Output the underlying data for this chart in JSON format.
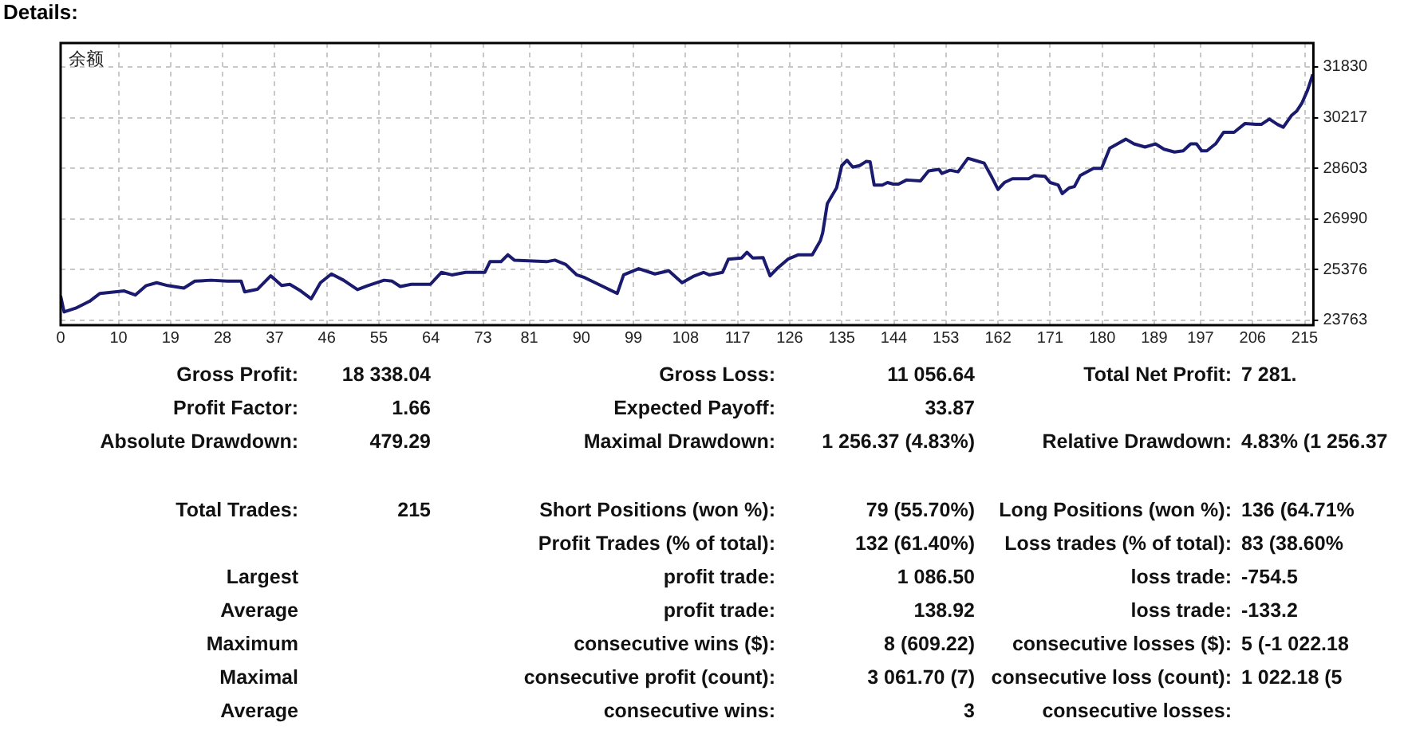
{
  "chart_data": [
    {
      "type": "line",
      "title": "Details:",
      "annotations": [
        "余额"
      ],
      "color": "#1a1a6e",
      "grid": true,
      "xlim": [
        0,
        216.5
      ],
      "ylim": [
        23610,
        32590
      ],
      "xticks": [
        0,
        10,
        19,
        28,
        37,
        46,
        55,
        64,
        73,
        81,
        90,
        99,
        108,
        117,
        126,
        135,
        144,
        153,
        162,
        171,
        180,
        189,
        197,
        206,
        215
      ],
      "yticks": [
        23763,
        25376,
        26990,
        28603,
        30217,
        31830
      ],
      "x": [
        0,
        0.6,
        2.6,
        5.0,
        6.8,
        11.0,
        12.9,
        14.8,
        16.6,
        18.5,
        21.3,
        23.2,
        26.0,
        28.8,
        31.2,
        31.8,
        34.0,
        36.3,
        38.2,
        39.6,
        41.5,
        43.3,
        44.9,
        46.8,
        48.9,
        51.3,
        53.1,
        55.9,
        57.3,
        58.7,
        60.6,
        63.9,
        65.8,
        67.6,
        70.0,
        73.3,
        74.2,
        76.1,
        77.3,
        78.4,
        84.0,
        85.4,
        87.3,
        89.2,
        90.6,
        94.3,
        96.2,
        97.3,
        99.9,
        102.7,
        105.1,
        107.4,
        109.3,
        111.1,
        112.1,
        114.4,
        115.4,
        117.7,
        118.6,
        119.6,
        121.4,
        122.6,
        123.8,
        125.7,
        127.5,
        129.9,
        131.3,
        131.7,
        132.5,
        134.1,
        135.0,
        135.9,
        136.9,
        138.1,
        139.2,
        139.9,
        140.6,
        142.0,
        142.9,
        143.9,
        144.8,
        146.2,
        148.6,
        150.0,
        151.8,
        152.3,
        153.7,
        155.1,
        156.8,
        157.9,
        159.6,
        160.7,
        162.0,
        163.1,
        164.5,
        167.3,
        168.2,
        170.1,
        171.0,
        172.4,
        173.1,
        174.3,
        175.2,
        176.2,
        178.5,
        179.9,
        181.3,
        183.2,
        184.1,
        185.5,
        187.4,
        189.2,
        190.7,
        192.5,
        194.0,
        195.3,
        196.3,
        197.2,
        198.1,
        199.6,
        201.0,
        201.9,
        202.8,
        204.7,
        206.6,
        207.5,
        208.9,
        210.3,
        211.3,
        212.7,
        213.6,
        214.5,
        215.5,
        216.4
      ],
      "values": [
        24540,
        24030,
        24150,
        24370,
        24620,
        24700,
        24570,
        24870,
        24960,
        24870,
        24790,
        25010,
        25040,
        25010,
        25010,
        24670,
        24750,
        25180,
        24870,
        24910,
        24700,
        24450,
        24960,
        25240,
        25040,
        24740,
        24870,
        25040,
        25010,
        24840,
        24910,
        24910,
        25290,
        25210,
        25290,
        25290,
        25630,
        25630,
        25850,
        25680,
        25630,
        25680,
        25540,
        25210,
        25120,
        24790,
        24620,
        25210,
        25410,
        25240,
        25340,
        24960,
        25160,
        25290,
        25210,
        25290,
        25710,
        25750,
        25930,
        25750,
        25760,
        25180,
        25410,
        25710,
        25850,
        25850,
        26300,
        26550,
        27480,
        27980,
        28690,
        28860,
        28640,
        28690,
        28820,
        28810,
        28070,
        28070,
        28150,
        28100,
        28100,
        28230,
        28200,
        28520,
        28570,
        28440,
        28540,
        28490,
        28920,
        28860,
        28770,
        28400,
        27930,
        28150,
        28270,
        28270,
        28370,
        28350,
        28150,
        28070,
        27800,
        27980,
        28020,
        28370,
        28600,
        28600,
        29240,
        29440,
        29530,
        29380,
        29280,
        29380,
        29210,
        29120,
        29160,
        29380,
        29380,
        29160,
        29160,
        29380,
        29750,
        29750,
        29750,
        30030,
        30000,
        30000,
        30170,
        30000,
        29910,
        30280,
        30420,
        30670,
        31090,
        31590
      ]
    },
    {
      "type": "other",
      "annotations": [
        "Gross Profit:",
        "18 338.04",
        "Gross Loss:",
        "11 056.64",
        "Total Net Profit:",
        "7 281.",
        "Profit Factor:",
        "1.66",
        "Expected Payoff:",
        "33.87",
        "Absolute Drawdown:",
        "479.29",
        "Maximal Drawdown:",
        "1 256.37 (4.83%)",
        "Relative Drawdown:",
        "4.83% (1 256.37",
        "Total Trades:",
        "215",
        "Short Positions (won %):",
        "79 (55.70%)",
        "Long Positions (won %):",
        "136 (64.71%",
        "Profit Trades (% of total):",
        "132 (61.40%)",
        "Loss trades (% of total):",
        "83 (38.60%",
        "Largest",
        "profit trade:",
        "1 086.50",
        "loss trade:",
        "-754.5",
        "Average",
        "profit trade:",
        "138.92",
        "loss trade:",
        "-133.2",
        "Maximum",
        "consecutive wins ($):",
        "8 (609.22)",
        "consecutive losses ($):",
        "5 (-1 022.18",
        "Maximal",
        "consecutive profit (count):",
        "3 061.70 (7)",
        "consecutive loss (count):",
        "1 022.18 (5",
        "Average",
        "consecutive wins:",
        "3",
        "consecutive losses:"
      ]
    }
  ]
}
